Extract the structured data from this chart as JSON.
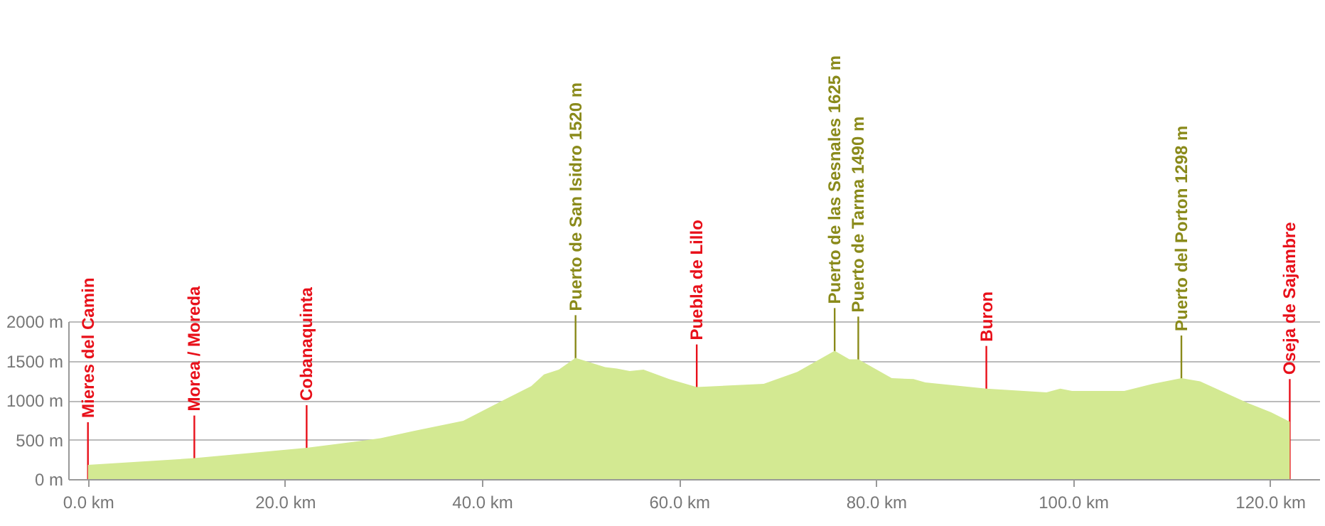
{
  "chart_data": {
    "type": "area",
    "x": [
      0,
      10.8,
      22.2,
      29.7,
      33,
      38.1,
      42.1,
      45,
      46.3,
      47.8,
      49.5,
      52.5,
      53.7,
      55,
      56.4,
      59,
      61.8,
      68.6,
      72,
      75.8,
      77.3,
      78.2,
      81.6,
      83.8,
      85,
      91.2,
      97.3,
      98.7,
      99.9,
      105.2,
      108.1,
      111,
      112.9,
      117.7,
      120.1,
      122
    ],
    "series": [
      {
        "color": "#d3e992",
        "values": [
          180,
          265,
          396,
          517,
          607,
          739,
          996,
          1177,
          1327,
          1387,
          1537,
          1418,
          1400,
          1369,
          1387,
          1267,
          1166,
          1207,
          1357,
          1627,
          1519,
          1519,
          1279,
          1267,
          1225,
          1147,
          1099,
          1147,
          1117,
          1117,
          1207,
          1279,
          1238,
          967,
          847,
          727
        ]
      }
    ],
    "xlim": [
      -2,
      125
    ],
    "ylim": [
      0,
      2000
    ],
    "xticks": [
      {
        "value": 0,
        "label": "0.0 km"
      },
      {
        "value": 20,
        "label": "20.0 km"
      },
      {
        "value": 40,
        "label": "40.0 km"
      },
      {
        "value": 60,
        "label": "60.0 km"
      },
      {
        "value": 80,
        "label": "80.0 km"
      },
      {
        "value": 100,
        "label": "100.0 km"
      },
      {
        "value": 120,
        "label": "120.0 km"
      }
    ],
    "yticks": [
      {
        "value": 0,
        "label": "0 m"
      },
      {
        "value": 500,
        "label": "500 m"
      },
      {
        "value": 1000,
        "label": "1000 m"
      },
      {
        "value": 1500,
        "label": "1500 m"
      },
      {
        "value": 2000,
        "label": "2000 m"
      }
    ],
    "grid": "y",
    "ref_lines": [
      {
        "axis": "x",
        "value": 0,
        "label": "Mieres del Camin",
        "color": "#e8101a"
      },
      {
        "axis": "x",
        "value": 10.8,
        "label": "Morea / Moreda",
        "color": "#e8101a"
      },
      {
        "axis": "x",
        "value": 22.2,
        "label": "Cobanaquinta",
        "color": "#e8101a"
      },
      {
        "axis": "x",
        "value": 49.5,
        "label": "Puerto de San Isidro 1520 m",
        "color": "#8a8a1a"
      },
      {
        "axis": "x",
        "value": 61.8,
        "label": "Puebla de Lillo",
        "color": "#e8101a"
      },
      {
        "axis": "x",
        "value": 75.8,
        "label": "Puerto de las Sesnales 1625 m",
        "color": "#8a8a1a"
      },
      {
        "axis": "x",
        "value": 78.2,
        "label": "Puerto de Tarma 1490 m",
        "color": "#8a8a1a"
      },
      {
        "axis": "x",
        "value": 91.2,
        "label": "Buron",
        "color": "#e8101a"
      },
      {
        "axis": "x",
        "value": 111,
        "label": "Puerto del Porton 1298 m",
        "color": "#8a8a1a"
      },
      {
        "axis": "x",
        "value": 122,
        "label": "Oseja de Sajambre",
        "color": "#e8101a"
      }
    ]
  }
}
